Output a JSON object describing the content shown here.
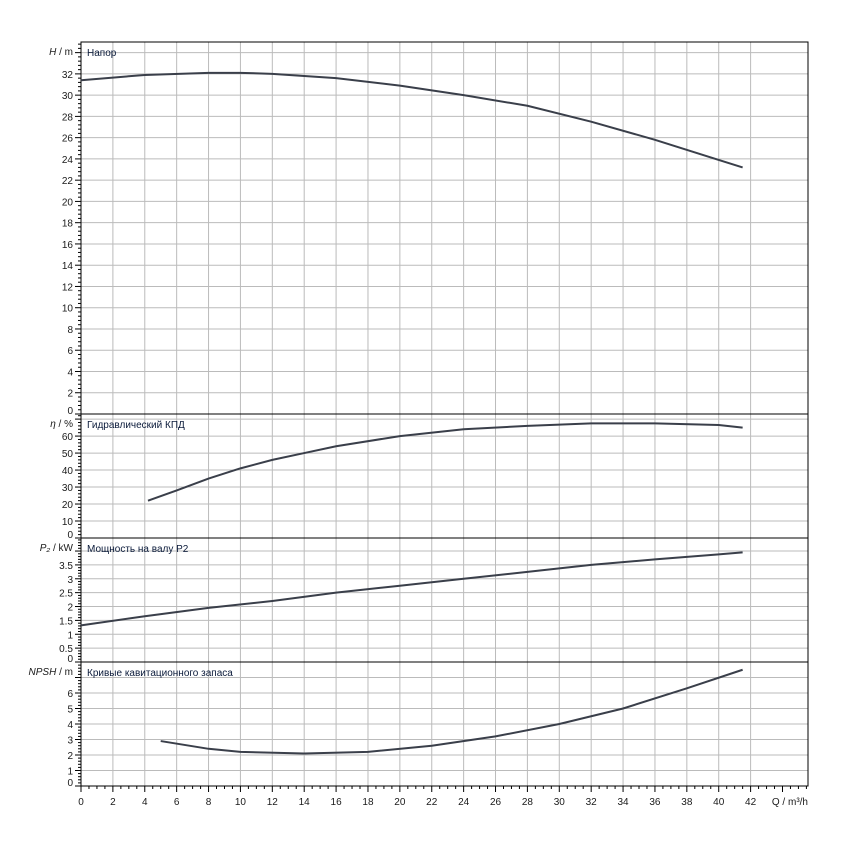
{
  "chart_data": [
    {
      "type": "line",
      "title": "Напор",
      "ylabel_sym": "H",
      "ylabel_unit": "m",
      "ylim": [
        0,
        35
      ],
      "yticks": [
        0,
        2,
        4,
        6,
        8,
        10,
        12,
        14,
        16,
        18,
        20,
        22,
        24,
        26,
        28,
        30,
        32
      ],
      "x": [
        0,
        4,
        8,
        10,
        12,
        16,
        20,
        24,
        28,
        32,
        36,
        40,
        41.5
      ],
      "y": [
        31.4,
        31.9,
        32.1,
        32.1,
        32.0,
        31.6,
        30.9,
        30.0,
        29.0,
        27.5,
        25.8,
        23.9,
        23.2
      ]
    },
    {
      "type": "line",
      "title": "Гидравлический КПД",
      "ylabel_sym": "η",
      "ylabel_unit": "%",
      "ylim": [
        0,
        73
      ],
      "yticks": [
        0,
        10,
        20,
        30,
        40,
        50,
        60
      ],
      "x": [
        4.2,
        6,
        8,
        10,
        12,
        14,
        16,
        20,
        24,
        28,
        32,
        36,
        40,
        41.5
      ],
      "y": [
        22,
        28,
        35,
        41,
        46,
        50,
        54,
        60,
        64,
        66,
        67.5,
        67.5,
        66.5,
        65
      ]
    },
    {
      "type": "line",
      "title": "Мощность на валу P2",
      "ylabel_sym": "P₂",
      "ylabel_unit": "kW",
      "ylim": [
        0,
        4.47
      ],
      "yticks": [
        0,
        0.5,
        1,
        1.5,
        2,
        2.5,
        3,
        3.5
      ],
      "x": [
        0,
        4,
        8,
        12,
        16,
        20,
        24,
        28,
        32,
        36,
        40,
        41.5
      ],
      "y": [
        1.32,
        1.65,
        1.95,
        2.2,
        2.5,
        2.75,
        3.0,
        3.25,
        3.5,
        3.7,
        3.88,
        3.95
      ]
    },
    {
      "type": "line",
      "title": "Кривые кавитационного запаса",
      "ylabel_sym": "NPSH",
      "ylabel_unit": "m",
      "ylim": [
        0,
        8
      ],
      "yticks": [
        0,
        1,
        2,
        3,
        4,
        5,
        6
      ],
      "x": [
        5,
        8,
        10,
        14,
        18,
        22,
        26,
        30,
        34,
        38,
        41.5
      ],
      "y": [
        2.9,
        2.4,
        2.2,
        2.1,
        2.2,
        2.6,
        3.2,
        4.0,
        5.0,
        6.3,
        7.5
      ]
    }
  ],
  "x_axis": {
    "label": "Q / m³/h",
    "xlim": [
      0,
      45.6
    ],
    "ticks": [
      0,
      2,
      4,
      6,
      8,
      10,
      12,
      14,
      16,
      18,
      20,
      22,
      24,
      26,
      28,
      30,
      32,
      34,
      36,
      38,
      40,
      42
    ]
  },
  "colors": {
    "curve": "#3a3f4a",
    "grid": "#bbbbbb",
    "axis_label": "#1a3a7a"
  }
}
